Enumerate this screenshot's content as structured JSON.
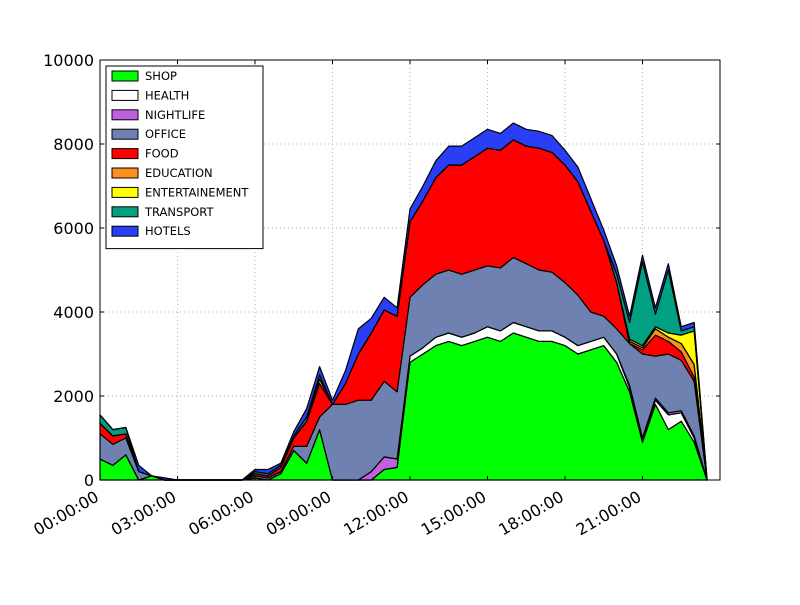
{
  "chart_data": {
    "type": "area",
    "stacked": true,
    "title": "",
    "xlabel": "",
    "ylabel": "",
    "ylim": [
      0,
      10000
    ],
    "xlim": [
      "00:00:00",
      "23:59:59"
    ],
    "grid": true,
    "legend_position": "top-left",
    "yticks": [
      "0",
      "2000",
      "4000",
      "6000",
      "8000",
      "10000"
    ],
    "xticks": [
      "00:00:00",
      "03:00:00",
      "06:00:00",
      "09:00:00",
      "12:00:00",
      "15:00:00",
      "18:00:00",
      "21:00:00"
    ],
    "x": [
      "00:00",
      "00:30",
      "01:00",
      "01:30",
      "02:00",
      "02:30",
      "03:00",
      "03:30",
      "04:00",
      "04:30",
      "05:00",
      "05:30",
      "06:00",
      "06:30",
      "07:00",
      "07:30",
      "08:00",
      "08:30",
      "09:00",
      "09:30",
      "10:00",
      "10:30",
      "11:00",
      "11:30",
      "12:00",
      "12:30",
      "13:00",
      "13:30",
      "14:00",
      "14:30",
      "15:00",
      "15:30",
      "16:00",
      "16:30",
      "17:00",
      "17:30",
      "18:00",
      "18:30",
      "19:00",
      "19:30",
      "20:00",
      "20:30",
      "21:00",
      "21:30",
      "22:00",
      "22:30",
      "23:00",
      "23:30"
    ],
    "series": [
      {
        "name": "SHOP",
        "color": "#00ff00",
        "values": [
          500,
          350,
          600,
          0,
          100,
          0,
          0,
          0,
          0,
          0,
          0,
          0,
          50,
          0,
          150,
          700,
          400,
          1200,
          0,
          0,
          0,
          0,
          250,
          300,
          2800,
          3000,
          3200,
          3300,
          3200,
          3300,
          3400,
          3300,
          3500,
          3400,
          3300,
          3300,
          3200,
          3000,
          3100,
          3200,
          2800,
          2100,
          900,
          1800,
          1200,
          1400,
          900,
          0
        ]
      },
      {
        "name": "HEALTH",
        "color": "#ffffff",
        "values": [
          0,
          0,
          0,
          0,
          0,
          0,
          0,
          0,
          0,
          0,
          0,
          0,
          0,
          0,
          0,
          0,
          0,
          0,
          0,
          0,
          0,
          0,
          0,
          0,
          150,
          150,
          200,
          200,
          200,
          200,
          250,
          250,
          250,
          250,
          250,
          250,
          200,
          200,
          200,
          200,
          200,
          100,
          50,
          100,
          350,
          200,
          100,
          0
        ]
      },
      {
        "name": "NIGHTLIFE",
        "color": "#c05fe0",
        "values": [
          0,
          0,
          0,
          0,
          0,
          0,
          0,
          0,
          0,
          0,
          0,
          0,
          0,
          0,
          0,
          0,
          0,
          0,
          0,
          0,
          0,
          200,
          300,
          200,
          0,
          0,
          0,
          0,
          0,
          0,
          0,
          0,
          0,
          0,
          0,
          0,
          0,
          0,
          0,
          0,
          0,
          50,
          50,
          50,
          50,
          50,
          50,
          0
        ]
      },
      {
        "name": "OFFICE",
        "color": "#6e81b0",
        "values": [
          600,
          500,
          400,
          200,
          0,
          0,
          0,
          0,
          0,
          0,
          0,
          0,
          50,
          50,
          50,
          100,
          400,
          300,
          1800,
          1800,
          1900,
          1700,
          1800,
          1600,
          1400,
          1500,
          1500,
          1500,
          1500,
          1500,
          1450,
          1500,
          1550,
          1500,
          1450,
          1400,
          1300,
          1200,
          700,
          500,
          600,
          1000,
          2000,
          1000,
          1400,
          1200,
          1300,
          0
        ]
      },
      {
        "name": "FOOD",
        "color": "#ff0000",
        "values": [
          250,
          200,
          100,
          0,
          0,
          0,
          0,
          0,
          0,
          0,
          0,
          0,
          50,
          50,
          100,
          200,
          600,
          800,
          0,
          500,
          1100,
          1600,
          1700,
          1800,
          1800,
          2000,
          2300,
          2500,
          2600,
          2700,
          2800,
          2800,
          2800,
          2800,
          2900,
          2850,
          2800,
          2700,
          2400,
          1800,
          1100,
          0,
          100,
          500,
          300,
          200,
          100,
          0
        ]
      },
      {
        "name": "EDUCATION",
        "color": "#ff9020",
        "values": [
          0,
          0,
          0,
          0,
          0,
          0,
          0,
          0,
          0,
          0,
          0,
          0,
          0,
          0,
          0,
          0,
          0,
          0,
          0,
          0,
          0,
          0,
          0,
          0,
          0,
          0,
          0,
          0,
          0,
          0,
          0,
          0,
          0,
          0,
          0,
          0,
          0,
          0,
          0,
          0,
          0,
          50,
          50,
          150,
          100,
          200,
          300,
          0
        ]
      },
      {
        "name": "ENTERTAINEMENT",
        "color": "#ffff00",
        "values": [
          0,
          0,
          0,
          0,
          0,
          0,
          0,
          0,
          0,
          0,
          0,
          0,
          0,
          0,
          0,
          0,
          0,
          100,
          0,
          0,
          0,
          0,
          0,
          0,
          0,
          0,
          0,
          0,
          0,
          0,
          0,
          0,
          0,
          0,
          0,
          0,
          0,
          0,
          0,
          0,
          0,
          50,
          50,
          50,
          100,
          200,
          800,
          0
        ]
      },
      {
        "name": "TRANSPORT",
        "color": "#00a080",
        "values": [
          200,
          150,
          150,
          0,
          0,
          0,
          0,
          0,
          0,
          0,
          0,
          0,
          50,
          50,
          50,
          50,
          100,
          100,
          0,
          0,
          0,
          0,
          0,
          0,
          0,
          0,
          0,
          0,
          0,
          0,
          0,
          0,
          0,
          0,
          0,
          0,
          0,
          0,
          0,
          0,
          200,
          400,
          2000,
          300,
          1500,
          100,
          100,
          0
        ]
      },
      {
        "name": "HOTELS",
        "color": "#2a3ff5",
        "values": [
          0,
          0,
          0,
          150,
          0,
          50,
          0,
          0,
          0,
          0,
          0,
          0,
          50,
          100,
          50,
          100,
          200,
          200,
          100,
          300,
          600,
          350,
          300,
          200,
          300,
          350,
          400,
          450,
          450,
          450,
          450,
          400,
          400,
          400,
          400,
          400,
          350,
          350,
          300,
          250,
          200,
          150,
          150,
          150,
          150,
          100,
          100,
          0
        ]
      }
    ]
  }
}
